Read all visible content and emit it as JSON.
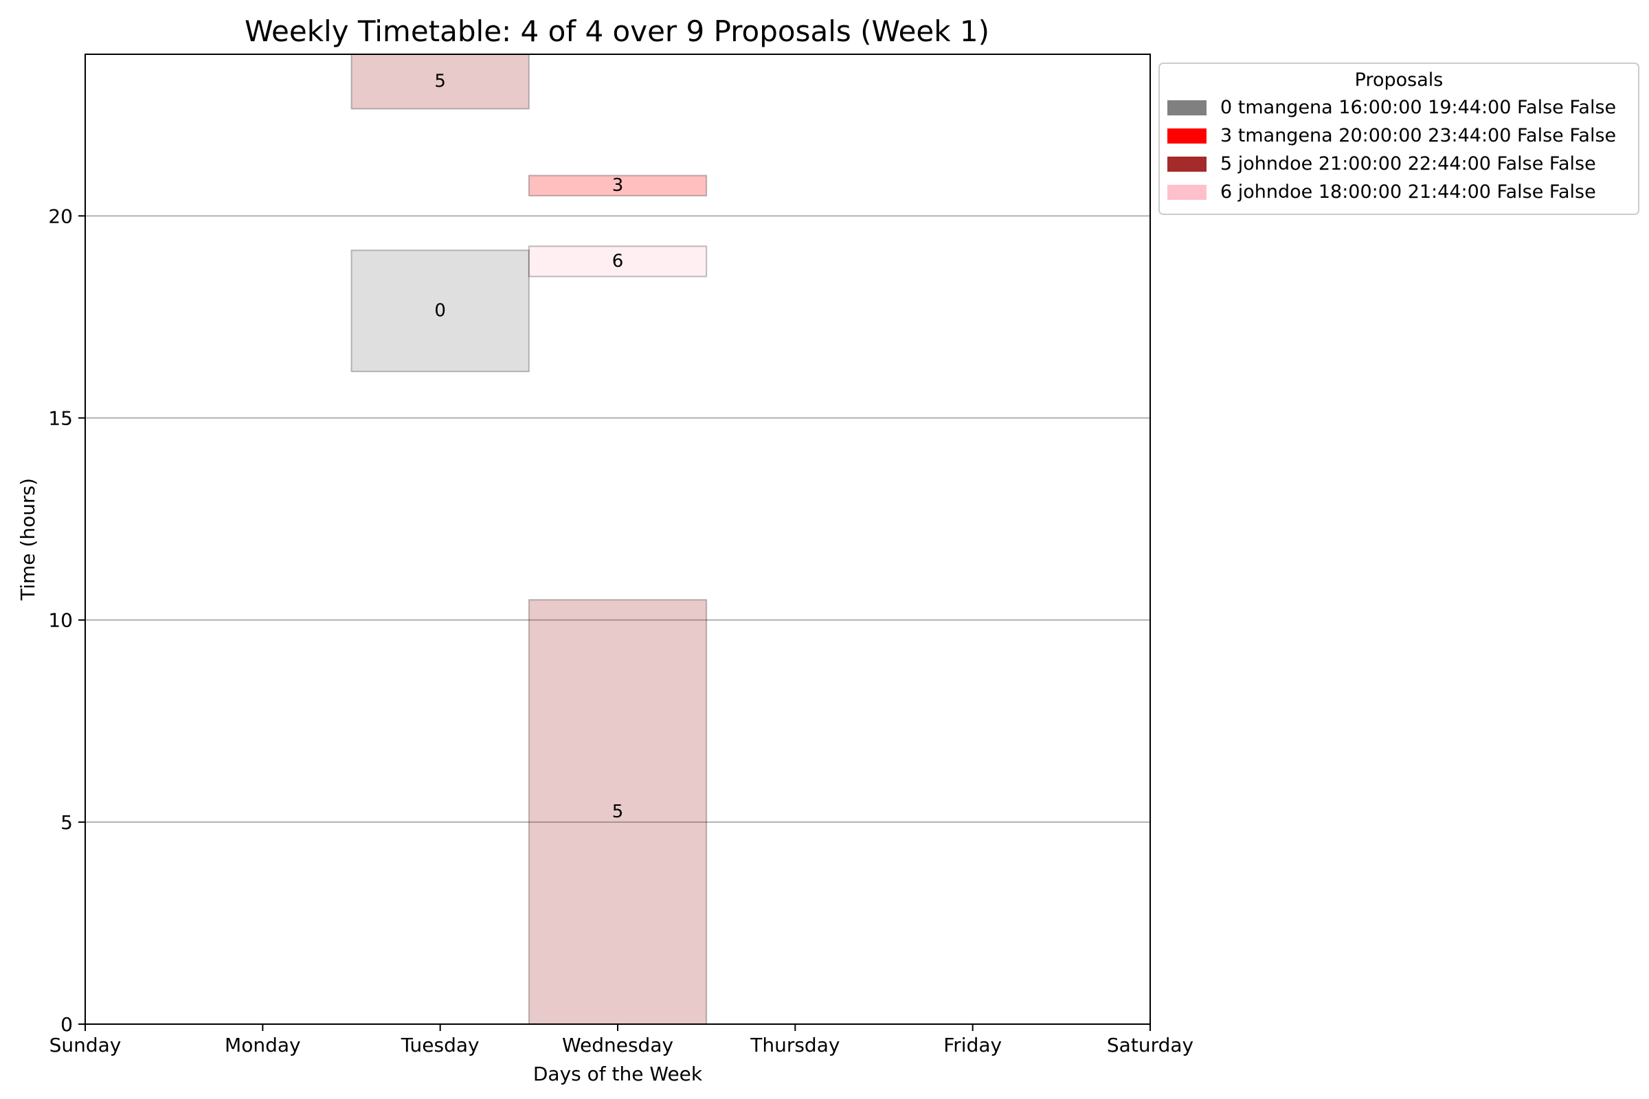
{
  "chart_data": {
    "type": "bar",
    "title": "Weekly Timetable: 4 of 4 over 9 Proposals (Week 1)",
    "xlabel": "Days of the Week",
    "ylabel": "Time (hours)",
    "categories": [
      "Sunday",
      "Monday",
      "Tuesday",
      "Wednesday",
      "Thursday",
      "Friday",
      "Saturday"
    ],
    "xlim": [
      0,
      6
    ],
    "ylim": [
      0,
      24
    ],
    "yticks": [
      0,
      5,
      10,
      15,
      20
    ],
    "grid": "horizontal",
    "legend": {
      "title": "Proposals",
      "placement": "outside-top-right",
      "entries": [
        {
          "label": "0 tmangena 16:00:00 19:44:00 False False",
          "color": "#808080"
        },
        {
          "label": "3 tmangena 20:00:00 23:44:00 False False",
          "color": "#ff0000"
        },
        {
          "label": "5 johndoe 21:00:00 22:44:00 False False",
          "color": "#a52a2a"
        },
        {
          "label": "6 johndoe 18:00:00 21:44:00 False False",
          "color": "#ffc0cb"
        }
      ]
    },
    "blocks": [
      {
        "label": "5",
        "x0": 1.5,
        "x1": 2.5,
        "y0": 22.65,
        "y1": 24,
        "color": "#a52a2a",
        "alpha": 0.25
      },
      {
        "label": "0",
        "x0": 1.5,
        "x1": 2.5,
        "y0": 16.15,
        "y1": 19.15,
        "color": "#808080",
        "alpha": 0.25
      },
      {
        "label": "3",
        "x0": 2.5,
        "x1": 3.5,
        "y0": 20.5,
        "y1": 21.0,
        "color": "#ff0000",
        "alpha": 0.25
      },
      {
        "label": "6",
        "x0": 2.5,
        "x1": 3.5,
        "y0": 18.5,
        "y1": 19.25,
        "color": "#ffc0cb",
        "alpha": 0.25
      },
      {
        "label": "5",
        "x0": 2.5,
        "x1": 3.5,
        "y0": 0,
        "y1": 10.5,
        "color": "#a52a2a",
        "alpha": 0.25
      }
    ]
  }
}
